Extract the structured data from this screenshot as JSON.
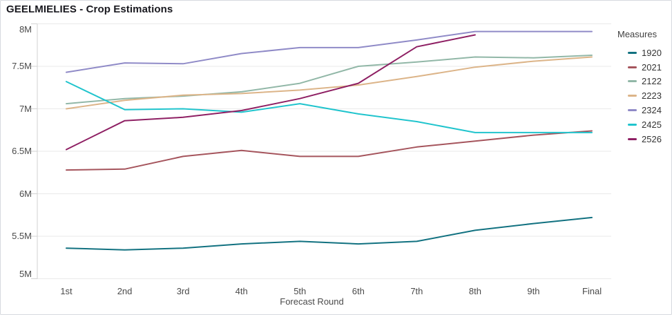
{
  "title": "GEELMIELIES - Crop Estimations",
  "legend": {
    "title": "Measures"
  },
  "colors": {
    "grid": "#e9e9e9",
    "axis": "#d2d2d2"
  },
  "chart_data": {
    "type": "line",
    "title": "GEELMIELIES - Crop Estimations",
    "xlabel": "Forecast Round",
    "ylabel": "",
    "grid": true,
    "legend_position": "right",
    "legend_title": "Measures",
    "categories": [
      "1st",
      "2nd",
      "3rd",
      "4th",
      "5th",
      "6th",
      "7th",
      "8th",
      "9th",
      "Final"
    ],
    "ylim": [
      5000000,
      8000000
    ],
    "y_ticks": [
      {
        "label": "8M",
        "value": 8000000
      },
      {
        "label": "7.5M",
        "value": 7500000
      },
      {
        "label": "7M",
        "value": 7000000
      },
      {
        "label": "6.5M",
        "value": 6500000
      },
      {
        "label": "6M",
        "value": 6000000
      },
      {
        "label": "5.5M",
        "value": 5500000
      },
      {
        "label": "5M",
        "value": 5000000
      }
    ],
    "series": [
      {
        "name": "1920",
        "color": "#117180",
        "values": [
          5360000,
          5340000,
          5360000,
          5410000,
          5440000,
          5410000,
          5440000,
          5570000,
          5650000,
          5720000
        ]
      },
      {
        "name": "2021",
        "color": "#a5545c",
        "values": [
          6280000,
          6290000,
          6440000,
          6510000,
          6440000,
          6440000,
          6550000,
          6620000,
          6690000,
          6740000
        ]
      },
      {
        "name": "2122",
        "color": "#91b7a7",
        "values": [
          7060000,
          7120000,
          7150000,
          7200000,
          7300000,
          7500000,
          7550000,
          7610000,
          7600000,
          7630000
        ]
      },
      {
        "name": "2223",
        "color": "#dcb488",
        "values": [
          7000000,
          7100000,
          7160000,
          7180000,
          7220000,
          7280000,
          7380000,
          7490000,
          7560000,
          7610000
        ]
      },
      {
        "name": "2324",
        "color": "#8f8ac7",
        "values": [
          7430000,
          7540000,
          7530000,
          7650000,
          7720000,
          7720000,
          7810000,
          7910000,
          7910000,
          7910000
        ]
      },
      {
        "name": "2425",
        "color": "#20c4cd",
        "values": [
          7320000,
          6990000,
          7000000,
          6960000,
          7060000,
          6940000,
          6850000,
          6720000,
          6720000,
          6720000
        ]
      },
      {
        "name": "2526",
        "color": "#8e1f63",
        "values": [
          6520000,
          6860000,
          6900000,
          6980000,
          7120000,
          7300000,
          7730000,
          7870000,
          null,
          null
        ]
      }
    ]
  }
}
